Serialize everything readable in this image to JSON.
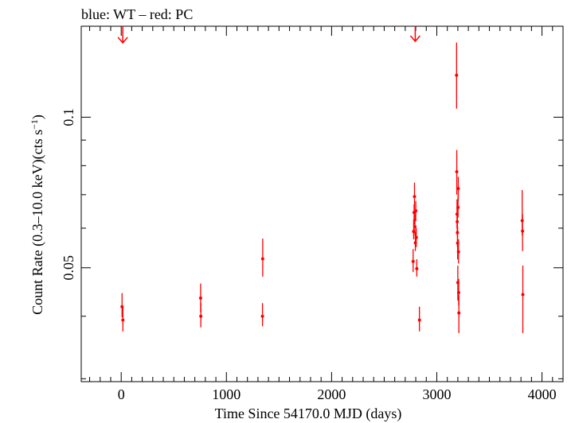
{
  "chart_data": {
    "type": "scatter",
    "title": "blue: WT – red: PC",
    "xlabel": "Time Since 54170.0 MJD (days)",
    "ylabel": "Count Rate (0.3–10.0 keV)(cts s",
    "ylabel_unit_superscript": "−1",
    "ylabel_suffix": ")",
    "x_ticks": [
      0,
      1000,
      2000,
      3000,
      4000
    ],
    "x_tick_labels": [
      "0",
      "1000",
      "2000",
      "3000",
      "4000"
    ],
    "y_tick_labels": [
      {
        "value": 0.05,
        "label": "0.05"
      },
      {
        "value": 0.1,
        "label": "0.1"
      }
    ],
    "xlim": [
      -380,
      4200
    ],
    "ylim": [
      0.0296,
      0.152
    ],
    "y_scale": "log",
    "grid": false,
    "legend": "none",
    "series": [
      {
        "color": "#ff0000",
        "points": [
          {
            "x": 8,
            "y": 0.0418,
            "ylo": 0.0398,
            "yhi": 0.0445
          },
          {
            "x": 16,
            "y": 0.0393,
            "ylo": 0.0373,
            "yhi": 0.0418
          },
          {
            "x": 755,
            "y": 0.0435,
            "ylo": 0.0408,
            "yhi": 0.0465
          },
          {
            "x": 757,
            "y": 0.04,
            "ylo": 0.038,
            "yhi": 0.0425
          },
          {
            "x": 1345,
            "y": 0.0521,
            "ylo": 0.048,
            "yhi": 0.0572
          },
          {
            "x": 1343,
            "y": 0.04,
            "ylo": 0.0382,
            "yhi": 0.0425
          },
          {
            "x": 2775,
            "y": 0.0515,
            "ylo": 0.049,
            "yhi": 0.0545
          },
          {
            "x": 2780,
            "y": 0.0591,
            "ylo": 0.057,
            "yhi": 0.0625
          },
          {
            "x": 2784,
            "y": 0.0645,
            "ylo": 0.061,
            "yhi": 0.067
          },
          {
            "x": 2788,
            "y": 0.0694,
            "ylo": 0.0655,
            "yhi": 0.074
          },
          {
            "x": 2792,
            "y": 0.0604,
            "ylo": 0.058,
            "yhi": 0.064
          },
          {
            "x": 2796,
            "y": 0.0561,
            "ylo": 0.054,
            "yhi": 0.059
          },
          {
            "x": 2800,
            "y": 0.065,
            "ylo": 0.062,
            "yhi": 0.068
          },
          {
            "x": 2805,
            "y": 0.0575,
            "ylo": 0.055,
            "yhi": 0.06
          },
          {
            "x": 2810,
            "y": 0.0498,
            "ylo": 0.048,
            "yhi": 0.052
          },
          {
            "x": 2835,
            "y": 0.0393,
            "ylo": 0.0373,
            "yhi": 0.0418
          },
          {
            "x": 3188,
            "y": 0.1213,
            "ylo": 0.104,
            "yhi": 0.141
          },
          {
            "x": 3190,
            "y": 0.0778,
            "ylo": 0.07,
            "yhi": 0.086
          },
          {
            "x": 3192,
            "y": 0.064,
            "ylo": 0.06,
            "yhi": 0.0685
          },
          {
            "x": 3194,
            "y": 0.0618,
            "ylo": 0.058,
            "yhi": 0.066
          },
          {
            "x": 3196,
            "y": 0.0588,
            "ylo": 0.055,
            "yhi": 0.063
          },
          {
            "x": 3198,
            "y": 0.056,
            "ylo": 0.052,
            "yhi": 0.0605
          },
          {
            "x": 3200,
            "y": 0.0467,
            "ylo": 0.043,
            "yhi": 0.0505
          },
          {
            "x": 3202,
            "y": 0.066,
            "ylo": 0.063,
            "yhi": 0.07
          },
          {
            "x": 3204,
            "y": 0.072,
            "ylo": 0.068,
            "yhi": 0.076
          },
          {
            "x": 3206,
            "y": 0.0538,
            "ylo": 0.051,
            "yhi": 0.057
          },
          {
            "x": 3208,
            "y": 0.0446,
            "ylo": 0.042,
            "yhi": 0.0475
          },
          {
            "x": 3210,
            "y": 0.0406,
            "ylo": 0.037,
            "yhi": 0.044
          },
          {
            "x": 3812,
            "y": 0.0621,
            "ylo": 0.058,
            "yhi": 0.0715
          },
          {
            "x": 3815,
            "y": 0.0592,
            "ylo": 0.054,
            "yhi": 0.064
          },
          {
            "x": 3818,
            "y": 0.0442,
            "ylo": 0.037,
            "yhi": 0.0505
          }
        ],
        "upper_limits": [
          {
            "x": 15,
            "y": 0.145
          },
          {
            "x": 2795,
            "y": 0.146
          }
        ]
      }
    ]
  }
}
